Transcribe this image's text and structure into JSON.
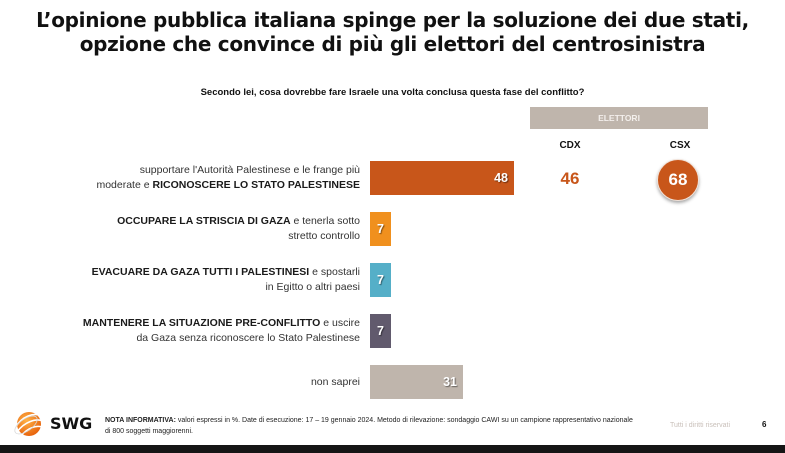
{
  "title_line1": "L’opinione pubblica italiana spinge per la soluzione dei due stati,",
  "title_line2": "opzione che convince di più gli elettori del centrosinistra",
  "question": "Secondo lei, cosa dovrebbe fare Israele una volta conclusa questa fase del conflitto?",
  "electors": {
    "header": "ELETTORI",
    "columns": [
      "CDX",
      "CSX"
    ],
    "first_row_values": [
      "46",
      "68"
    ]
  },
  "chart_data": {
    "type": "bar",
    "orientation": "horizontal",
    "title": "Secondo lei, cosa dovrebbe fare Israele una volta conclusa questa fase del conflitto?",
    "unit": "%",
    "categories": [
      "supportare l'Autorità Palestinese e le frange più moderate e RICONOSCERE LO STATO PALESTINESE",
      "OCCUPARE LA STRISCIA DI GAZA e tenerla sotto stretto controllo",
      "EVACUARE DA GAZA TUTTI I PALESTINESI e spostarli in Egitto o altri paesi",
      "MANTENERE LA SITUAZIONE PRE-CONFLITTO e uscire da Gaza senza riconoscere lo Stato Palestinese",
      "non saprei"
    ],
    "label_parts": [
      [
        {
          "t": "supportare l'Autorità Palestinese e le frange più",
          "b": false
        },
        {
          "br": true
        },
        {
          "t": "moderate e ",
          "b": false
        },
        {
          "t": "RICONOSCERE LO STATO PALESTINESE",
          "b": true
        }
      ],
      [
        {
          "t": "OCCUPARE LA STRISCIA DI GAZA",
          "b": true
        },
        {
          "t": " e tenerla sotto",
          "b": false
        },
        {
          "br": true
        },
        {
          "t": "stretto controllo",
          "b": false
        }
      ],
      [
        {
          "t": "EVACUARE DA GAZA TUTTI I PALESTINESI",
          "b": true
        },
        {
          "t": " e spostarli",
          "b": false
        },
        {
          "br": true
        },
        {
          "t": "in Egitto o altri paesi",
          "b": false
        }
      ],
      [
        {
          "t": "MANTENERE LA SITUAZIONE PRE-CONFLITTO",
          "b": true
        },
        {
          "t": " e uscire",
          "b": false
        },
        {
          "br": true
        },
        {
          "t": "da Gaza senza riconoscere lo Stato Palestinese",
          "b": false
        }
      ],
      [
        {
          "t": "non saprei",
          "b": false
        }
      ]
    ],
    "values": [
      48,
      7,
      7,
      7,
      31
    ],
    "colors": [
      "#c8561a",
      "#f0901e",
      "#55afc8",
      "#615a6d",
      "#bfb5ac"
    ],
    "xlim": [
      0,
      100
    ],
    "by_electorate": {
      "category": "supportare l'Autorità Palestinese e le frange più moderate e RICONOSCERE LO STATO PALESTINESE",
      "CDX": 46,
      "CSX": 68,
      "highlight": "CSX"
    }
  },
  "footer": {
    "brand": "SWG",
    "note_label": "NOTA INFORMATIVA:",
    "note_text": " valori espressi in %. Date di esecuzione: 17 – 19 gennaio 2024. Metodo di rilevazione: sondaggio CAWI su un campione rappresentativo nazionale di 800 soggetti maggiorenni.",
    "rights": "Tutti i diritti riservati",
    "page": "6"
  }
}
